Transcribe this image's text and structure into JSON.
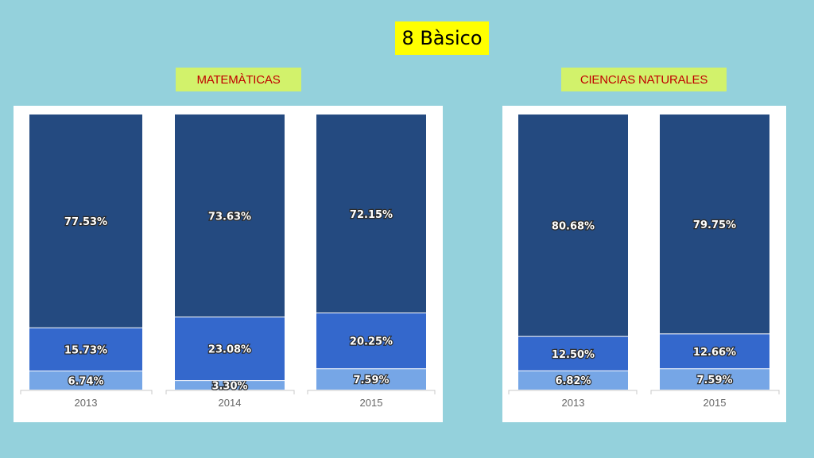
{
  "slide": {
    "title": "8 Bàsico"
  },
  "colors": {
    "background": "#94d1dc",
    "title_bg": "#ffff00",
    "chart_title_bg": "#d2f26b",
    "chart_title_text": "#c00000",
    "series_dark": "#244a80",
    "series_mid": "#3468cc",
    "series_light": "#76a6e6"
  },
  "chart_data": [
    {
      "type": "bar",
      "stacked": true,
      "title": "MATEMÀTICAS",
      "categories": [
        "2013",
        "2014",
        "2015"
      ],
      "series": [
        {
          "values": [
            6.74,
            3.3,
            7.59
          ],
          "labels": [
            "6.74%",
            "3.30%",
            "7.59%"
          ],
          "color": "#76a6e6"
        },
        {
          "values": [
            15.73,
            23.08,
            20.25
          ],
          "labels": [
            "15.73%",
            "23.08%",
            "20.25%"
          ],
          "color": "#3468cc"
        },
        {
          "values": [
            77.53,
            73.63,
            72.15
          ],
          "labels": [
            "77.53%",
            "73.63%",
            "72.15%"
          ],
          "color": "#244a80"
        }
      ],
      "ylim": [
        0,
        100
      ],
      "grid": false,
      "legend": "none"
    },
    {
      "type": "bar",
      "stacked": true,
      "title": "CIENCIAS NATURALES",
      "categories": [
        "2013",
        "2015"
      ],
      "series": [
        {
          "values": [
            6.82,
            7.59
          ],
          "labels": [
            "6.82%",
            "7.59%"
          ],
          "color": "#76a6e6"
        },
        {
          "values": [
            12.5,
            12.66
          ],
          "labels": [
            "12.50%",
            "12.66%"
          ],
          "color": "#3468cc"
        },
        {
          "values": [
            80.68,
            79.75
          ],
          "labels": [
            "80.68%",
            "79.75%"
          ],
          "color": "#244a80"
        }
      ],
      "ylim": [
        0,
        100
      ],
      "grid": false,
      "legend": "none"
    }
  ]
}
